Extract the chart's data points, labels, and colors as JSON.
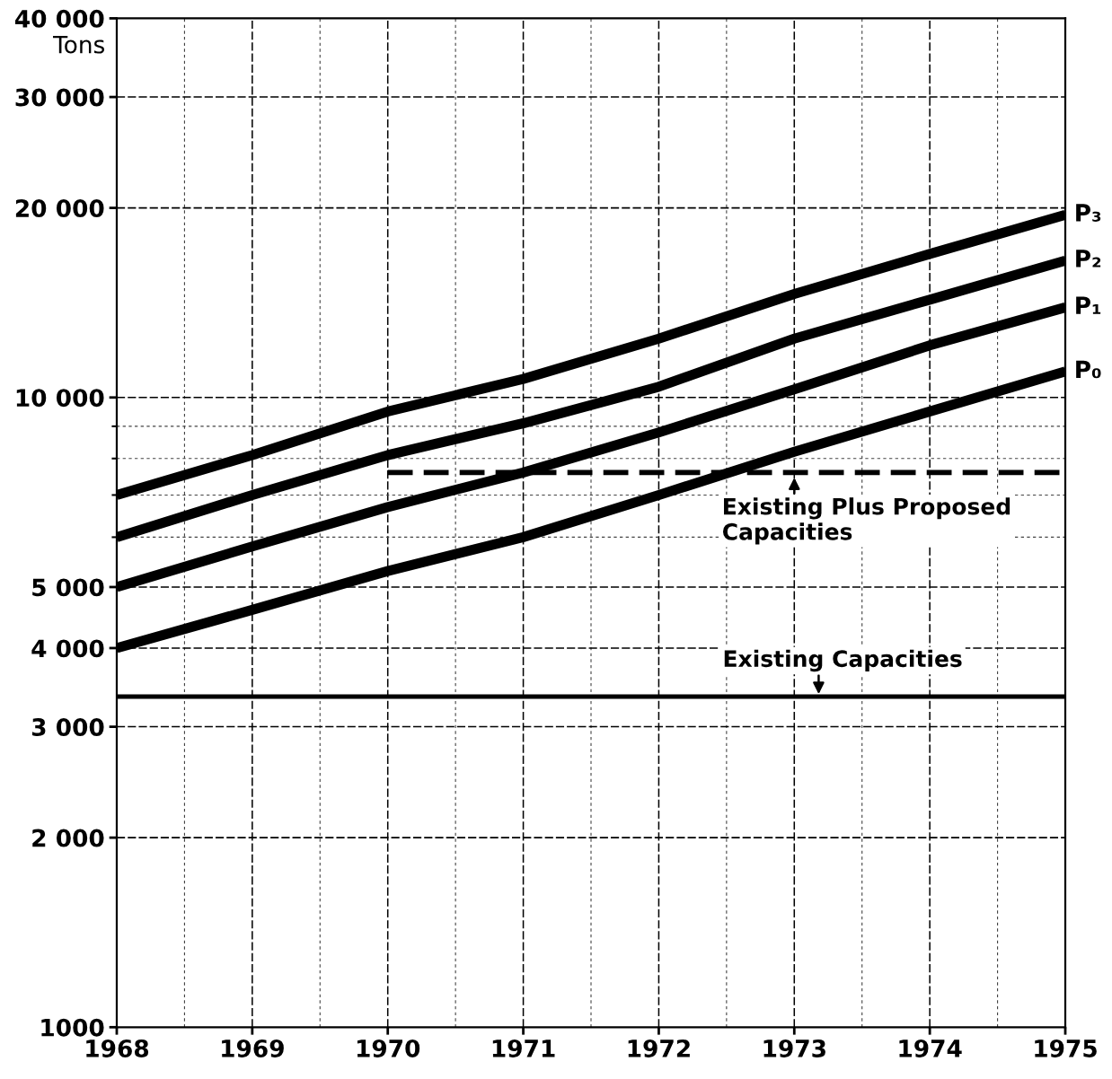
{
  "chart_data": {
    "type": "line",
    "ylabel": "Tons",
    "x": [
      1968,
      1969,
      1970,
      1971,
      1972,
      1973,
      1974,
      1975
    ],
    "series": [
      {
        "name": "P₀",
        "color": "#000000",
        "values": [
          4000,
          4600,
          5300,
          6000,
          7000,
          8200,
          9500,
          11000
        ]
      },
      {
        "name": "P₁",
        "color": "#000000",
        "values": [
          5000,
          5800,
          6700,
          7600,
          8800,
          10300,
          12100,
          13900
        ]
      },
      {
        "name": "P₂",
        "color": "#000000",
        "values": [
          6000,
          7000,
          8100,
          9100,
          10400,
          12400,
          14300,
          16500
        ]
      },
      {
        "name": "P₃",
        "color": "#000000",
        "values": [
          7000,
          8100,
          9500,
          10700,
          12400,
          14600,
          16900,
          19500
        ]
      },
      {
        "type": "line",
        "x": [
          1970,
          1975
        ],
        "values": [
          7600,
          7600
        ],
        "color": "#000000",
        "line_style": "dashed"
      }
    ],
    "xlim": [
      1968,
      1975
    ],
    "xticks": [
      1968,
      1969,
      1970,
      1971,
      1972,
      1973,
      1974,
      1975
    ],
    "ylim": [
      1000,
      40000
    ],
    "yticks": [
      {
        "value": 1000,
        "label": "1000"
      },
      {
        "value": 2000,
        "label": "2 000"
      },
      {
        "value": 3000,
        "label": "3 000"
      },
      {
        "value": 4000,
        "label": "4 000"
      },
      {
        "value": 5000,
        "label": "5 000"
      },
      {
        "value": 10000,
        "label": "10 000"
      },
      {
        "value": 20000,
        "label": "20 000"
      },
      {
        "value": 30000,
        "label": "30 000"
      },
      {
        "value": 40000,
        "label": "40 000"
      }
    ],
    "log": "y",
    "grid": true,
    "line_style": "solid",
    "ref_lines": [
      {
        "axis": "y",
        "value": 3350,
        "label": "Existing Capacities",
        "color": "#000000",
        "line_style": "solid"
      }
    ],
    "annotations": [
      {
        "text": "Existing Plus Proposed\nCapacities",
        "x": 1973,
        "y": 7600
      }
    ]
  }
}
